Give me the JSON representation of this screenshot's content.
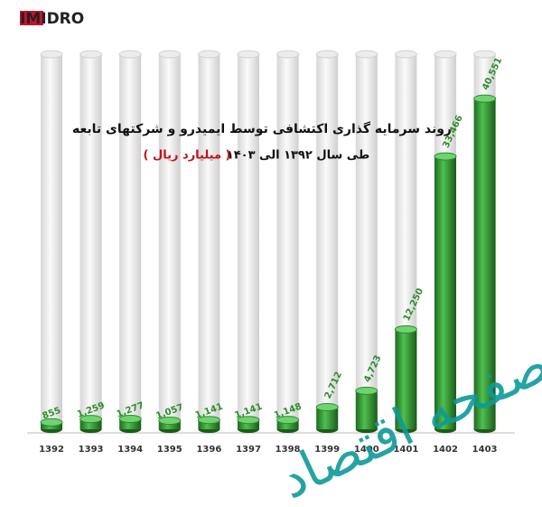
{
  "logo": "IMIDRO",
  "watermark": "صفحه اقتصاد",
  "chart_data": {
    "type": "bar",
    "title": "روند سرمایه گذاری اکتشافی توسط ایمیدرو و شرکتهای تابعه",
    "subtitle": "طی سال ۱۳۹۲ الی ۱۴۰۳",
    "unit": "( میلیارد ریال )",
    "categories": [
      "1392",
      "1393",
      "1394",
      "1395",
      "1396",
      "1397",
      "1398",
      "1399",
      "1400",
      "1401",
      "1402",
      "1403"
    ],
    "values": [
      855,
      1259,
      1277,
      1057,
      1141,
      1141,
      1148,
      2712,
      4723,
      12250,
      33466,
      40551
    ],
    "value_labels": [
      "855",
      "1,259",
      "1,277",
      "1,057",
      "1,141",
      "1,141",
      "1,148",
      "2,712",
      "4,723",
      "12,250",
      "33,466",
      "40,551"
    ],
    "color": "#2e8b2e",
    "ylim": [
      0,
      46000
    ]
  }
}
